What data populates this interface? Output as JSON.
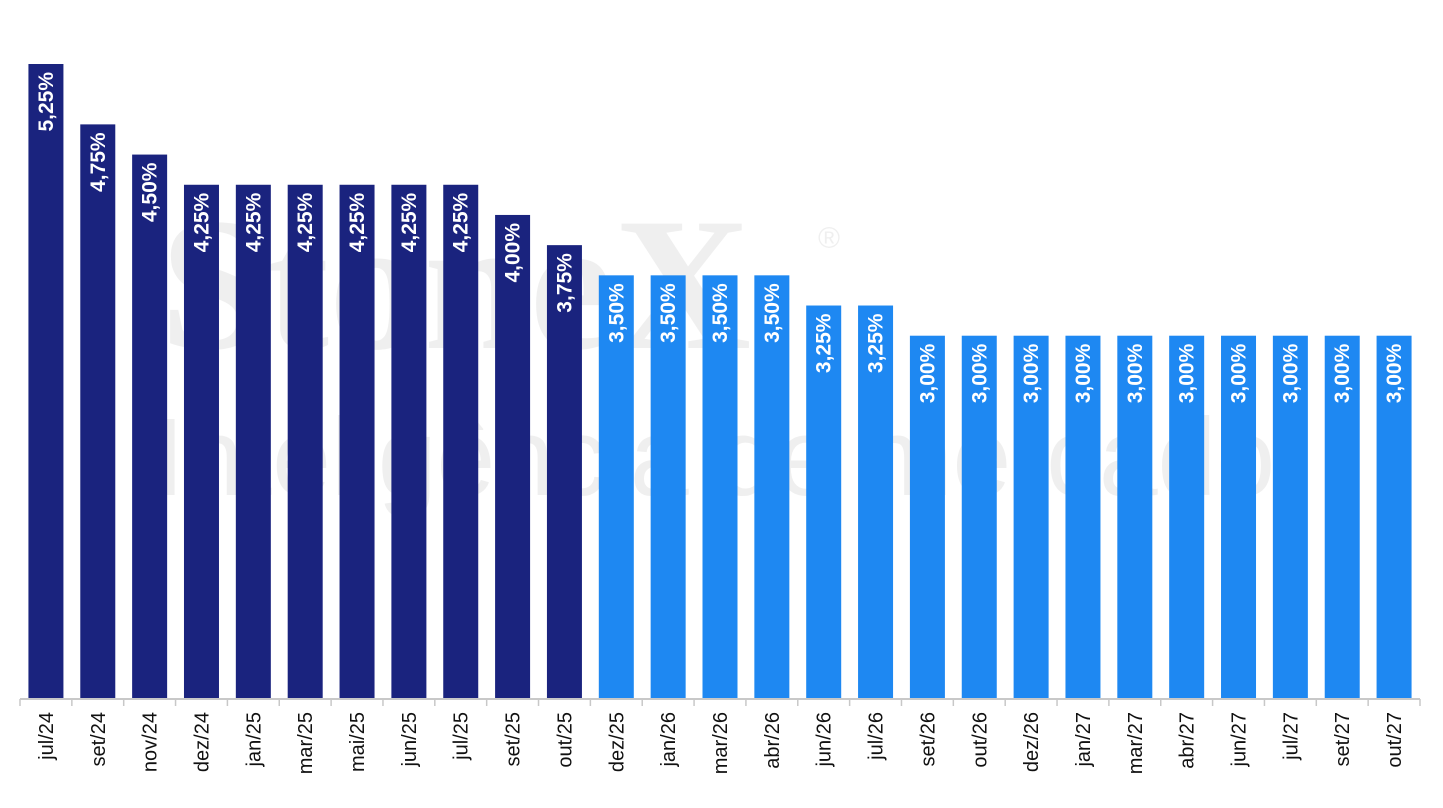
{
  "watermark": {
    "brand": "StoneX",
    "registered_mark": "®",
    "tagline": "Inteligência de mercado"
  },
  "colors": {
    "realized": "#1a237e",
    "projected": "#1e88f2",
    "label": "#ffffff",
    "axis": "#c8c8c8",
    "tick_text": "#111111"
  },
  "chart_data": {
    "type": "bar",
    "categories": [
      "jul/24",
      "set/24",
      "nov/24",
      "dez/24",
      "jan/25",
      "mar/25",
      "mai/25",
      "jun/25",
      "jul/25",
      "set/25",
      "out/25",
      "dez/25",
      "jan/26",
      "mar/26",
      "abr/26",
      "jun/26",
      "jul/26",
      "set/26",
      "out/26",
      "dez/26",
      "jan/27",
      "mar/27",
      "abr/27",
      "jun/27",
      "jul/27",
      "set/27",
      "out/27"
    ],
    "values": [
      5.25,
      4.75,
      4.5,
      4.25,
      4.25,
      4.25,
      4.25,
      4.25,
      4.25,
      4.0,
      3.75,
      3.5,
      3.5,
      3.5,
      3.5,
      3.25,
      3.25,
      3.0,
      3.0,
      3.0,
      3.0,
      3.0,
      3.0,
      3.0,
      3.0,
      3.0,
      3.0
    ],
    "data_labels": [
      "5,25%",
      "4,75%",
      "4,50%",
      "4,25%",
      "4,25%",
      "4,25%",
      "4,25%",
      "4,25%",
      "4,25%",
      "4,00%",
      "3,75%",
      "3,50%",
      "3,50%",
      "3,50%",
      "3,50%",
      "3,25%",
      "3,25%",
      "3,00%",
      "3,00%",
      "3,00%",
      "3,00%",
      "3,00%",
      "3,00%",
      "3,00%",
      "3,00%",
      "3,00%",
      "3,00%"
    ],
    "projected_from_index": 11,
    "ylim": [
      0,
      5.25
    ],
    "grid": false,
    "legend": "none",
    "title": "",
    "xlabel": "",
    "ylabel": ""
  }
}
